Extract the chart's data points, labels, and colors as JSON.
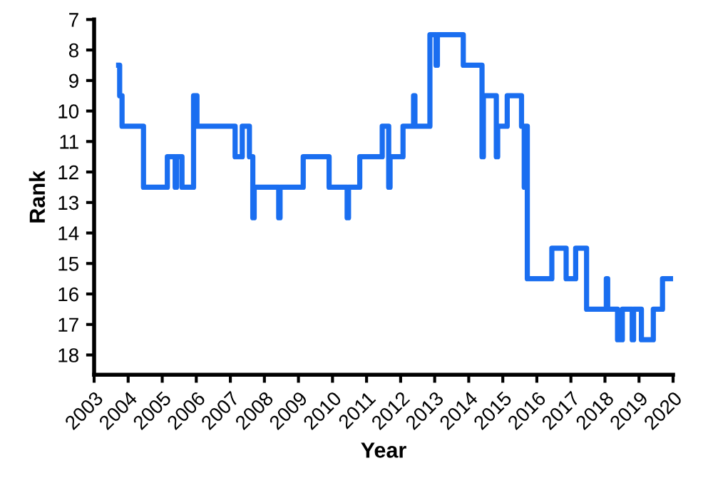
{
  "chart_data": {
    "type": "step",
    "xlabel": "Year",
    "ylabel": "Rank",
    "xlim": [
      2003,
      2020
    ],
    "xticks": [
      2003,
      2004,
      2005,
      2006,
      2007,
      2008,
      2009,
      2010,
      2011,
      2012,
      2013,
      2014,
      2015,
      2016,
      2017,
      2018,
      2019,
      2020
    ],
    "ylim": [
      18.65,
      7
    ],
    "yticks": [
      7,
      8,
      9,
      10,
      11,
      12,
      13,
      14,
      15,
      16,
      17,
      18
    ],
    "grid": false,
    "legend": false,
    "marker": "none",
    "line_style": "solid",
    "series": [
      {
        "color": "#1a6ef0",
        "x": [
          2003.72,
          2003.75,
          2003.82,
          2004.45,
          2005.15,
          2005.38,
          2005.42,
          2005.58,
          2005.92,
          2006.02,
          2007.14,
          2007.35,
          2007.56,
          2007.66,
          2007.7,
          2008.42,
          2008.46,
          2009.14,
          2009.9,
          2010.43,
          2010.47,
          2010.8,
          2011.46,
          2011.65,
          2011.69,
          2012.07,
          2012.38,
          2012.42,
          2012.86,
          2013.04,
          2013.08,
          2013.84,
          2014.39,
          2014.43,
          2014.81,
          2014.85,
          2015.13,
          2015.55,
          2015.63,
          2015.67,
          2015.72,
          2016.44,
          2016.86,
          2017.14,
          2017.46,
          2018.04,
          2018.08,
          2018.37,
          2018.51,
          2018.8,
          2018.84,
          2019.07,
          2019.42,
          2019.69,
          2020.0
        ],
        "values": [
          8.5,
          9.5,
          10.5,
          12.5,
          11.5,
          12.5,
          11.5,
          12.5,
          9.5,
          10.5,
          11.5,
          10.5,
          11.5,
          13.5,
          12.5,
          13.5,
          12.5,
          11.5,
          12.5,
          13.5,
          12.5,
          11.5,
          10.5,
          12.5,
          11.5,
          10.5,
          9.5,
          10.5,
          7.5,
          8.5,
          7.5,
          8.5,
          11.5,
          9.5,
          11.5,
          10.5,
          9.5,
          10.5,
          12.5,
          10.5,
          15.5,
          14.5,
          15.5,
          14.5,
          16.5,
          15.5,
          16.5,
          17.5,
          16.5,
          17.5,
          16.5,
          17.5,
          16.5,
          15.5,
          15.5
        ]
      }
    ]
  }
}
